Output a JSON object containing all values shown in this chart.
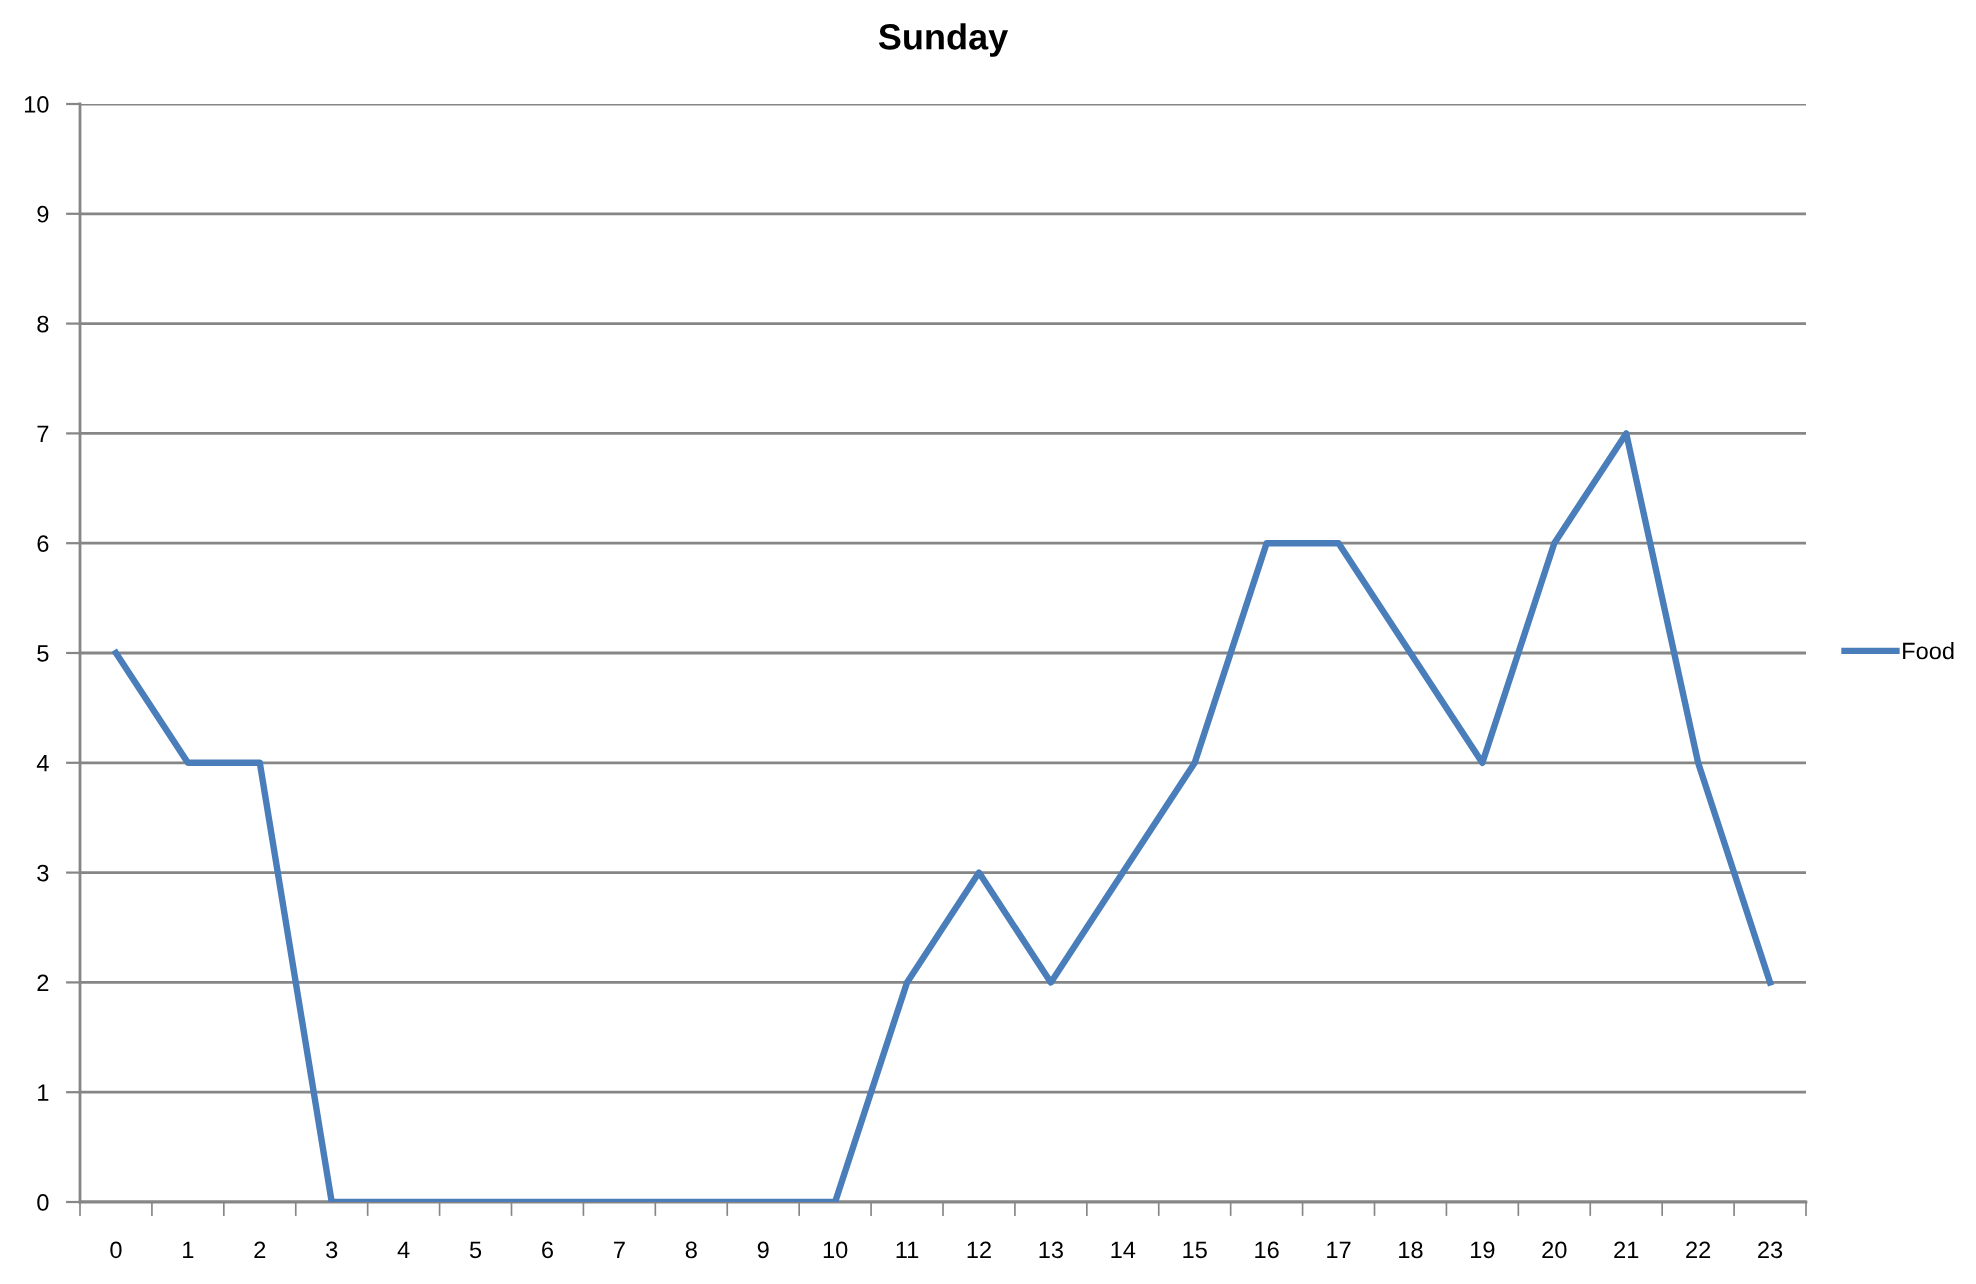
{
  "chart_data": {
    "type": "line",
    "title": "Sunday",
    "categories": [
      "0",
      "1",
      "2",
      "3",
      "4",
      "5",
      "6",
      "7",
      "8",
      "9",
      "10",
      "11",
      "12",
      "13",
      "14",
      "15",
      "16",
      "17",
      "18",
      "19",
      "20",
      "21",
      "22",
      "23"
    ],
    "series": [
      {
        "name": "Food",
        "color": "#4a7ebb",
        "values": [
          5,
          4,
          4,
          0,
          0,
          0,
          0,
          0,
          0,
          0,
          0,
          2,
          3,
          2,
          3,
          4,
          6,
          6,
          5,
          4,
          6,
          7,
          4,
          2
        ]
      }
    ],
    "ylim": [
      0,
      10
    ],
    "yticks": [
      0,
      1,
      2,
      3,
      4,
      5,
      6,
      7,
      8,
      9,
      10
    ],
    "grid": "y",
    "legend": "right",
    "line_style": "solid"
  }
}
